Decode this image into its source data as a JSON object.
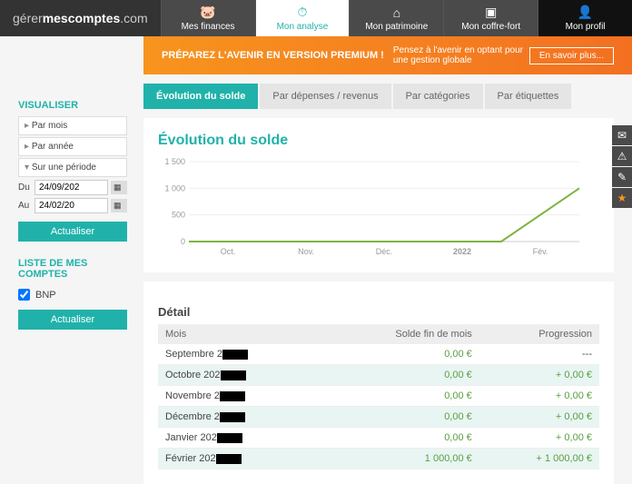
{
  "logo": {
    "prefix": "gérer",
    "bold": "mescomptes",
    "suffix": ".com"
  },
  "nav": {
    "finances": "Mes finances",
    "analyse": "Mon analyse",
    "patrimoine": "Mon patrimoine",
    "coffre": "Mon coffre-fort",
    "profil": "Mon profil"
  },
  "banner": {
    "title": "PRÉPAREZ L'AVENIR EN VERSION PREMIUM !",
    "text": "Pensez à l'avenir en optant pour une gestion globale",
    "button": "En savoir plus..."
  },
  "tabs": {
    "evolution": "Évolution du solde",
    "depenses": "Par dépenses / revenus",
    "categories": "Par catégories",
    "etiquettes": "Par étiquettes"
  },
  "sidebar": {
    "visualiser_title": "VISUALISER",
    "par_mois": "Par mois",
    "par_annee": "Par année",
    "sur_periode": "Sur une période",
    "du_label": "Du",
    "au_label": "Au",
    "du_value": "24/09/202",
    "au_value": "24/02/20",
    "actualiser": "Actualiser",
    "comptes_title": "LISTE DE MES COMPTES",
    "bnp": "BNP"
  },
  "chart": {
    "title": "Évolution du solde",
    "yticks": [
      "1 500",
      "1 000",
      "500",
      "0"
    ],
    "xticks": [
      "Oct.",
      "Nov.",
      "Déc.",
      "2022",
      "Fév."
    ],
    "ymax": 1500,
    "values": [
      0,
      0,
      0,
      0,
      0,
      1000
    ],
    "line_color": "#7cb342",
    "grid_color": "#eeeeee",
    "axis_color": "#cccccc",
    "background": "#ffffff"
  },
  "detail": {
    "title": "Détail",
    "col_mois": "Mois",
    "col_solde": "Solde fin de mois",
    "col_prog": "Progression",
    "rows": [
      {
        "mois": "Septembre 2",
        "solde": "0,00 €",
        "prog": "---",
        "hl": false
      },
      {
        "mois": "Octobre 202",
        "solde": "0,00 €",
        "prog": "+ 0,00 €",
        "hl": true
      },
      {
        "mois": "Novembre 2",
        "solde": "0,00 €",
        "prog": "+ 0,00 €",
        "hl": false
      },
      {
        "mois": "Décembre 2",
        "solde": "0,00 €",
        "prog": "+ 0,00 €",
        "hl": true
      },
      {
        "mois": "Janvier 202",
        "solde": "0,00 €",
        "prog": "+ 0,00 €",
        "hl": false
      },
      {
        "mois": "Février 202",
        "solde": "1 000,00 €",
        "prog": "+ 1 000,00 €",
        "hl": true
      }
    ]
  }
}
